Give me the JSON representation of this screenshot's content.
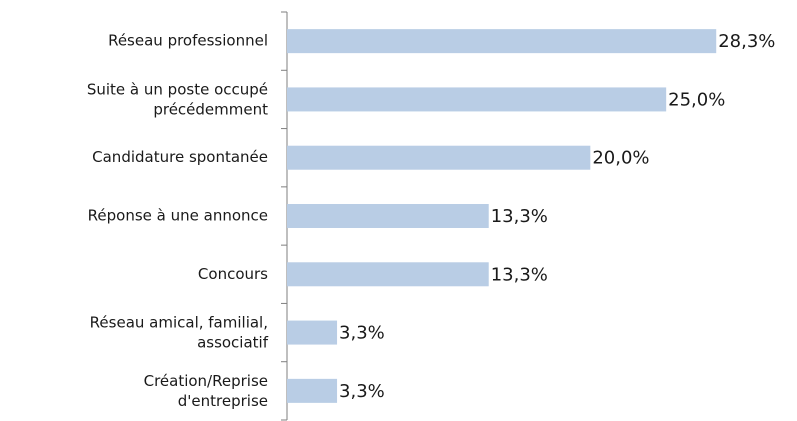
{
  "chart_data": {
    "type": "bar",
    "orientation": "horizontal",
    "categories": [
      "Réseau professionnel",
      "Suite à un poste occupé\nprécédemment",
      "Candidature spontanée",
      "Réponse à une annonce",
      "Concours",
      "Réseau amical, familial,\nassociatif",
      "Création/Reprise\nd'entreprise"
    ],
    "values": [
      28.3,
      25.0,
      20.0,
      13.3,
      13.3,
      3.3,
      3.3
    ],
    "value_labels": [
      "28,3%",
      "25,0%",
      "20,0%",
      "13,3%",
      "13,3%",
      "3,3%",
      "3,3%"
    ],
    "color": "#b9cde5",
    "xlim": [
      0,
      30
    ]
  }
}
